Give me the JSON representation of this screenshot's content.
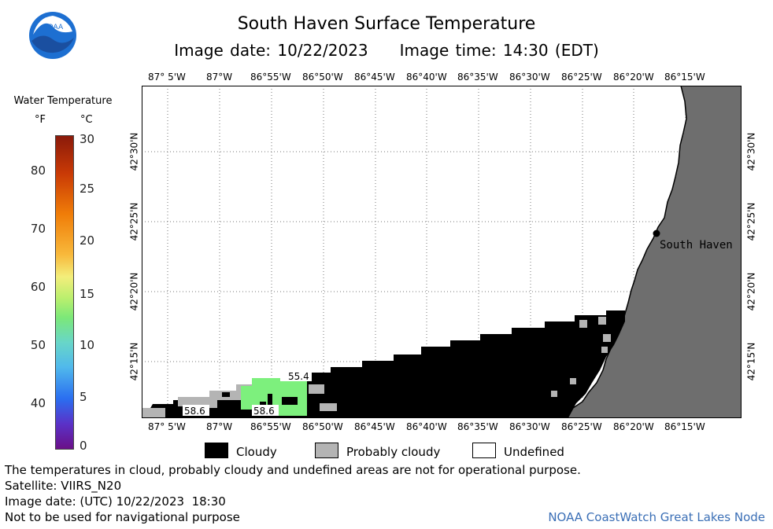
{
  "header": {
    "title": "South Haven Surface Temperature",
    "image_date": "Image date: 10/22/2023",
    "image_time": "Image time: 14:30 (EDT)"
  },
  "logo": {
    "text": "NOAA",
    "icon": "noaa-logo-icon"
  },
  "legend": {
    "title": "Water Temperature",
    "unit_f": "°F",
    "unit_c": "°C",
    "ticks_f": [
      "80",
      "70",
      "60",
      "50",
      "40"
    ],
    "ticks_c": [
      "30",
      "25",
      "20",
      "15",
      "10",
      "5",
      "0"
    ]
  },
  "map": {
    "lon_labels": [
      "87° 5'W",
      "87°W",
      "86°55'W",
      "86°50'W",
      "86°45'W",
      "86°40'W",
      "86°35'W",
      "86°30'W",
      "86°25'W",
      "86°20'W",
      "86°15'W"
    ],
    "lat_labels": [
      "42°30'N",
      "42°25'N",
      "42°20'N",
      "42°15'N"
    ],
    "place_label": "South Haven",
    "temp_labels": [
      "55.4",
      "58.6",
      "58.6"
    ],
    "colors": {
      "land": "#6e6e6e",
      "cloud": "#000000",
      "probably_cloudy": "#b4b4b4",
      "water_15c": "#7df07d",
      "undefined": "#ffffff"
    }
  },
  "key": {
    "cloudy": "Cloudy",
    "probably_cloudy": "Probably cloudy",
    "undefined": "Undefined"
  },
  "footer": {
    "line1": "The temperatures in cloud, probably cloudy and undefined areas are not for operational purpose.",
    "line2": "Satellite: VIIRS_N20",
    "line3": "Image date: (UTC) 10/22/2023  18:30",
    "line4": "Not to be used for navigational purpose",
    "credit": "NOAA CoastWatch Great Lakes Node"
  }
}
